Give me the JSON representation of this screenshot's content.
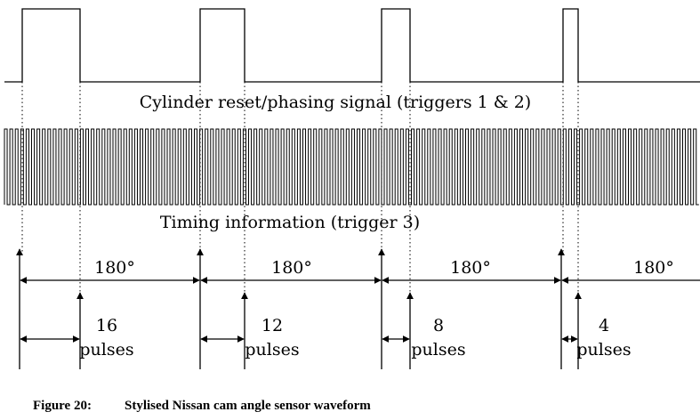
{
  "reset_signal_label": "Cylinder reset/phasing signal (triggers 1 & 2)",
  "timing_signal_label": "Timing information (trigger 3)",
  "sections": [
    {
      "angle": "180°",
      "pulses_count": "16",
      "pulses_word": "pulses"
    },
    {
      "angle": "180°",
      "pulses_count": "12",
      "pulses_word": "pulses"
    },
    {
      "angle": "180°",
      "pulses_count": "8",
      "pulses_word": "pulses"
    },
    {
      "angle": "180°",
      "pulses_count": "4",
      "pulses_word": "pulses"
    }
  ],
  "caption": {
    "number": "Figure 20:",
    "text": "Stylised Nissan cam angle sensor waveform"
  }
}
